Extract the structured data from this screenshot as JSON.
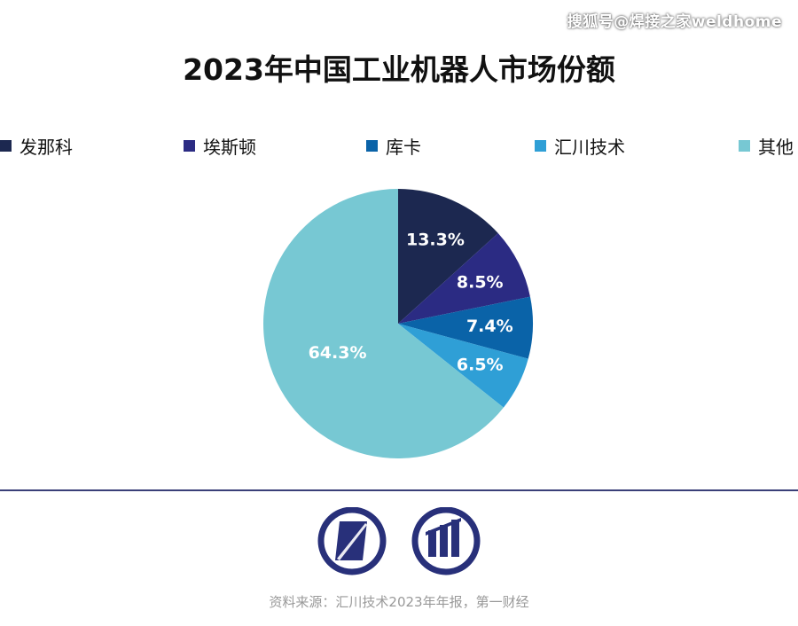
{
  "watermark": "搜狐号@焊接之家weldhome",
  "footer": {
    "source": "资料来源：汇川技术2023年年报，第一财经"
  },
  "chart_data": {
    "type": "pie",
    "title": "2023年中国工业机器人市场份额",
    "legend_placement": "top",
    "categories": [
      "发那科",
      "埃斯顿",
      "库卡",
      "汇川技术",
      "其他"
    ],
    "values": [
      13.3,
      8.5,
      7.4,
      6.5,
      64.3
    ],
    "labels": [
      "13.3%",
      "8.5%",
      "7.4%",
      "6.5%",
      "64.3%"
    ],
    "colors": [
      "#1c2850",
      "#2b2b83",
      "#0a63a8",
      "#2f9fd6",
      "#77c8d3"
    ],
    "start_angle_deg": 0,
    "direction": "clockwise"
  }
}
